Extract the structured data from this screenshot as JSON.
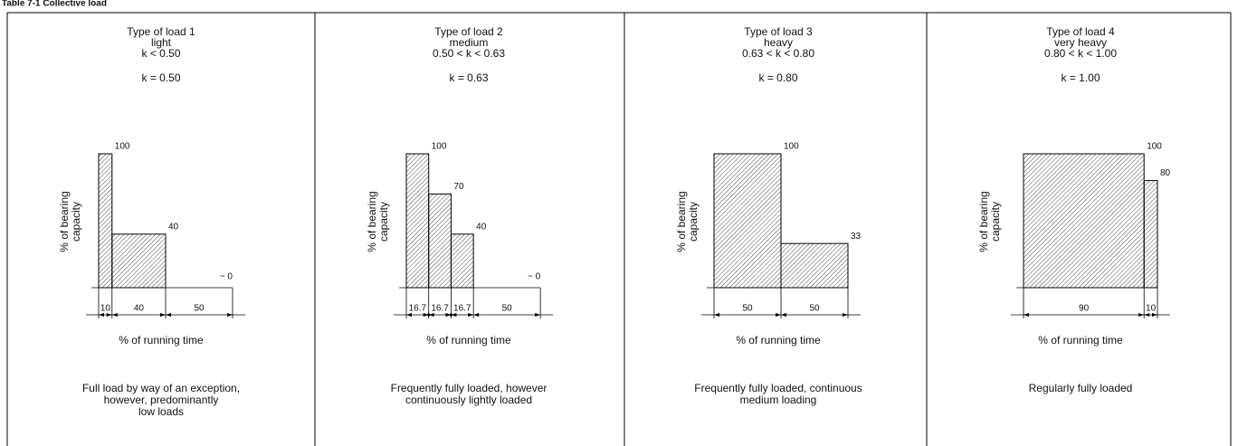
{
  "caption": "Table 7-1  Collective load",
  "y_label": [
    "% of bearing",
    "capacity"
  ],
  "x_label": "% of running time",
  "panels": [
    {
      "title": [
        "Type of load 1",
        "light",
        "k < 0.50"
      ],
      "k": "k = 0.50",
      "bars": [
        {
          "height": 100,
          "width": 10
        },
        {
          "height": 40,
          "width": 40
        },
        {
          "height": {
            "value": 0,
            "label": "~ 0"
          },
          "width": 50
        }
      ],
      "description": [
        "Full load by way of an exception,",
        "however, predominantly",
        "low loads"
      ]
    },
    {
      "title": [
        "Type of load 2",
        "medium",
        "0.50 < k < 0.63"
      ],
      "k": "k = 0.63",
      "bars": [
        {
          "height": 100,
          "width": 16.7
        },
        {
          "height": 70,
          "width": 16.7
        },
        {
          "height": 40,
          "width": 16.7
        },
        {
          "height": {
            "value": 0,
            "label": "~ 0"
          },
          "width": 50
        }
      ],
      "description": [
        "Frequently fully loaded, however",
        "continuously lightly loaded"
      ]
    },
    {
      "title": [
        "Type of load 3",
        "heavy",
        "0.63 < k < 0.80"
      ],
      "k": "k = 0.80",
      "bars": [
        {
          "height": 100,
          "width": 50
        },
        {
          "height": 33,
          "width": 50
        }
      ],
      "description": [
        "Frequently fully loaded, continuous",
        "medium loading"
      ]
    },
    {
      "title": [
        "Type of load 4",
        "very heavy",
        "0.80 < k < 1.00"
      ],
      "k": "k = 1.00",
      "bars": [
        {
          "height": 100,
          "width": 90
        },
        {
          "height": 80,
          "width": 10
        }
      ],
      "description": [
        "Regularly fully loaded"
      ]
    }
  ]
}
